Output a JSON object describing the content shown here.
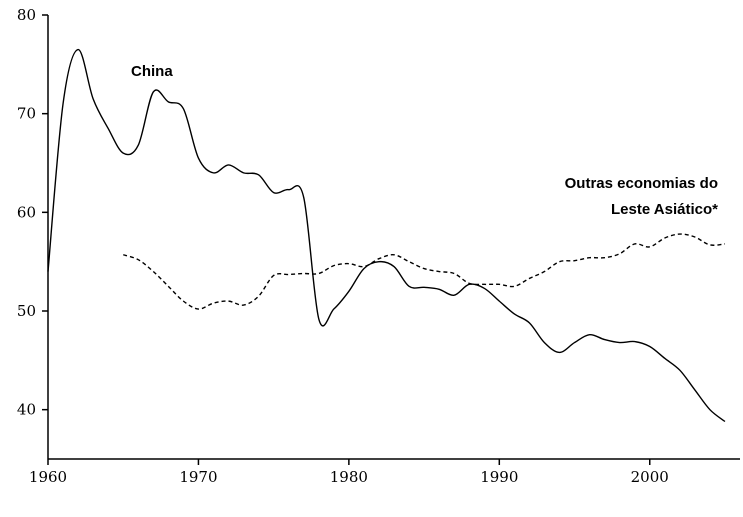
{
  "chart_data": {
    "type": "line",
    "title": "",
    "xlabel": "",
    "ylabel": "",
    "xlim": [
      1960,
      2006
    ],
    "ylim": [
      35,
      80
    ],
    "x_ticks": [
      1960,
      1970,
      1980,
      1990,
      2000
    ],
    "y_ticks": [
      40,
      50,
      60,
      70,
      80
    ],
    "grid": false,
    "legend": "none",
    "series": [
      {
        "name": "China",
        "line_style": "solid",
        "color": "#000000",
        "points": [
          [
            1960,
            54.0
          ],
          [
            1961,
            71.0
          ],
          [
            1962,
            76.5
          ],
          [
            1963,
            71.5
          ],
          [
            1964,
            68.5
          ],
          [
            1965,
            66.0
          ],
          [
            1966,
            66.8
          ],
          [
            1967,
            72.2
          ],
          [
            1968,
            71.2
          ],
          [
            1969,
            70.5
          ],
          [
            1970,
            65.5
          ],
          [
            1971,
            64.0
          ],
          [
            1972,
            64.8
          ],
          [
            1973,
            64.0
          ],
          [
            1974,
            63.8
          ],
          [
            1975,
            62.0
          ],
          [
            1976,
            62.3
          ],
          [
            1977,
            61.5
          ],
          [
            1978,
            49.2
          ],
          [
            1979,
            50.2
          ],
          [
            1980,
            52.0
          ],
          [
            1981,
            54.3
          ],
          [
            1982,
            55.0
          ],
          [
            1983,
            54.5
          ],
          [
            1984,
            52.5
          ],
          [
            1985,
            52.4
          ],
          [
            1986,
            52.2
          ],
          [
            1987,
            51.6
          ],
          [
            1988,
            52.7
          ],
          [
            1989,
            52.3
          ],
          [
            1990,
            51.0
          ],
          [
            1991,
            49.7
          ],
          [
            1992,
            48.8
          ],
          [
            1993,
            46.8
          ],
          [
            1994,
            45.8
          ],
          [
            1995,
            46.8
          ],
          [
            1996,
            47.6
          ],
          [
            1997,
            47.1
          ],
          [
            1998,
            46.8
          ],
          [
            1999,
            46.9
          ],
          [
            2000,
            46.4
          ],
          [
            2001,
            45.2
          ],
          [
            2002,
            44.0
          ],
          [
            2003,
            42.0
          ],
          [
            2004,
            40.0
          ],
          [
            2005,
            38.8
          ]
        ]
      },
      {
        "name": "Outras economias do Leste Asiático*",
        "line_style": "dashed",
        "color": "#000000",
        "points": [
          [
            1965,
            55.7
          ],
          [
            1966,
            55.2
          ],
          [
            1967,
            54.0
          ],
          [
            1968,
            52.5
          ],
          [
            1969,
            51.0
          ],
          [
            1970,
            50.2
          ],
          [
            1971,
            50.8
          ],
          [
            1972,
            51.0
          ],
          [
            1973,
            50.6
          ],
          [
            1974,
            51.5
          ],
          [
            1975,
            53.6
          ],
          [
            1976,
            53.7
          ],
          [
            1977,
            53.8
          ],
          [
            1978,
            53.8
          ],
          [
            1979,
            54.6
          ],
          [
            1980,
            54.8
          ],
          [
            1981,
            54.5
          ],
          [
            1982,
            55.3
          ],
          [
            1983,
            55.7
          ],
          [
            1984,
            55.0
          ],
          [
            1985,
            54.3
          ],
          [
            1986,
            54.0
          ],
          [
            1987,
            53.8
          ],
          [
            1988,
            52.8
          ],
          [
            1989,
            52.7
          ],
          [
            1990,
            52.7
          ],
          [
            1991,
            52.5
          ],
          [
            1992,
            53.3
          ],
          [
            1993,
            54.0
          ],
          [
            1994,
            55.0
          ],
          [
            1995,
            55.1
          ],
          [
            1996,
            55.4
          ],
          [
            1997,
            55.4
          ],
          [
            1998,
            55.8
          ],
          [
            1999,
            56.8
          ],
          [
            2000,
            56.5
          ],
          [
            2001,
            57.4
          ],
          [
            2002,
            57.8
          ],
          [
            2003,
            57.5
          ],
          [
            2004,
            56.7
          ],
          [
            2005,
            56.8
          ]
        ]
      }
    ],
    "annotations": [
      {
        "text_lines": [
          "China"
        ],
        "series": "China"
      },
      {
        "text_lines": [
          "Outras economias do",
          "Leste Asiático*"
        ],
        "series": "Outras economias do Leste Asiático*"
      }
    ]
  }
}
